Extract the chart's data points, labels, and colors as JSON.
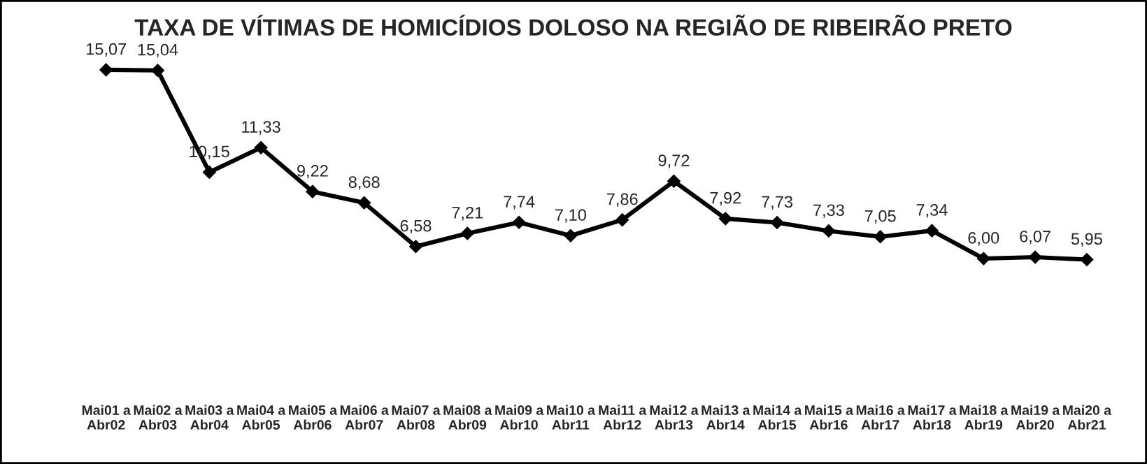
{
  "chart_data": {
    "type": "line",
    "title": "TAXA DE VÍTIMAS DE HOMICÍDIOS DOLOSO NA REGIÃO DE RIBEIRÃO PRETO",
    "categories": [
      "Mai01 a\nAbr02",
      "Mai02 a\nAbr03",
      "Mai03 a\nAbr04",
      "Mai04 a\nAbr05",
      "Mai05 a\nAbr06",
      "Mai06 a\nAbr07",
      "Mai07 a\nAbr08",
      "Mai08 a\nAbr09",
      "Mai09 a\nAbr10",
      "Mai10 a\nAbr11",
      "Mai11 a\nAbr12",
      "Mai12 a\nAbr13",
      "Mai13 a\nAbr14",
      "Mai14 a\nAbr15",
      "Mai15 a\nAbr16",
      "Mai16 a\nAbr17",
      "Mai17 a\nAbr18",
      "Mai18 a\nAbr19",
      "Mai19 a\nAbr20",
      "Mai20 a\nAbr21"
    ],
    "series": [
      {
        "color": "#000000",
        "values": [
          15.07,
          15.04,
          10.15,
          11.33,
          9.22,
          8.68,
          6.58,
          7.21,
          7.74,
          7.1,
          7.86,
          9.72,
          7.92,
          7.73,
          7.33,
          7.05,
          7.34,
          6.0,
          6.07,
          5.95
        ],
        "value_labels": [
          "15,07",
          "15,04",
          "10,15",
          "11,33",
          "9,22",
          "8,68",
          "6,58",
          "7,21",
          "7,74",
          "7,10",
          "7,86",
          "9,72",
          "7,92",
          "7,73",
          "7,33",
          "7,05",
          "7,34",
          "6,00",
          "6,07",
          "5,95"
        ]
      }
    ],
    "marker": "diamond",
    "line_style": "solid",
    "grid": false,
    "legend": false,
    "tick_labels": "x"
  }
}
